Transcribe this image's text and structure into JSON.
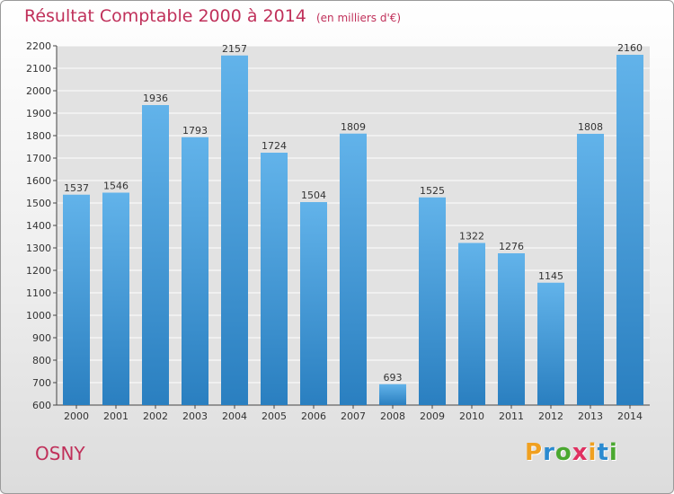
{
  "header": {
    "title": "Résultat Comptable 2000 à 2014",
    "subtitle": "(en milliers d'€)"
  },
  "footer": {
    "city": "OSNY",
    "brand": "Proxiti",
    "brand_letters": [
      {
        "char": "P",
        "color": "#f0a020"
      },
      {
        "char": "r",
        "color": "#2a8ad0"
      },
      {
        "char": "o",
        "color": "#4aa830"
      },
      {
        "char": "x",
        "color": "#e03060"
      },
      {
        "char": "i",
        "color": "#f0a020"
      },
      {
        "char": "t",
        "color": "#2a8ad0"
      },
      {
        "char": "i",
        "color": "#4aa830"
      }
    ]
  },
  "colors": {
    "bar_light": "#62b3ea",
    "bar_dark": "#2a7fc0",
    "title": "#c0305a",
    "grid": "#ffffff"
  },
  "chart_data": {
    "type": "bar",
    "title": "Résultat Comptable 2000 à 2014",
    "xlabel": "",
    "ylabel": "(en milliers d'€)",
    "ylim": [
      600,
      2200
    ],
    "yticks": [
      600,
      700,
      800,
      900,
      1000,
      1100,
      1200,
      1300,
      1400,
      1500,
      1600,
      1700,
      1800,
      1900,
      2000,
      2100,
      2200
    ],
    "grid": true,
    "categories": [
      "2000",
      "2001",
      "2002",
      "2003",
      "2004",
      "2005",
      "2006",
      "2007",
      "2008",
      "2009",
      "2010",
      "2011",
      "2012",
      "2013",
      "2014"
    ],
    "values": [
      1537,
      1546,
      1936,
      1793,
      2157,
      1724,
      1504,
      1809,
      693,
      1525,
      1322,
      1276,
      1145,
      1808,
      2160
    ]
  }
}
